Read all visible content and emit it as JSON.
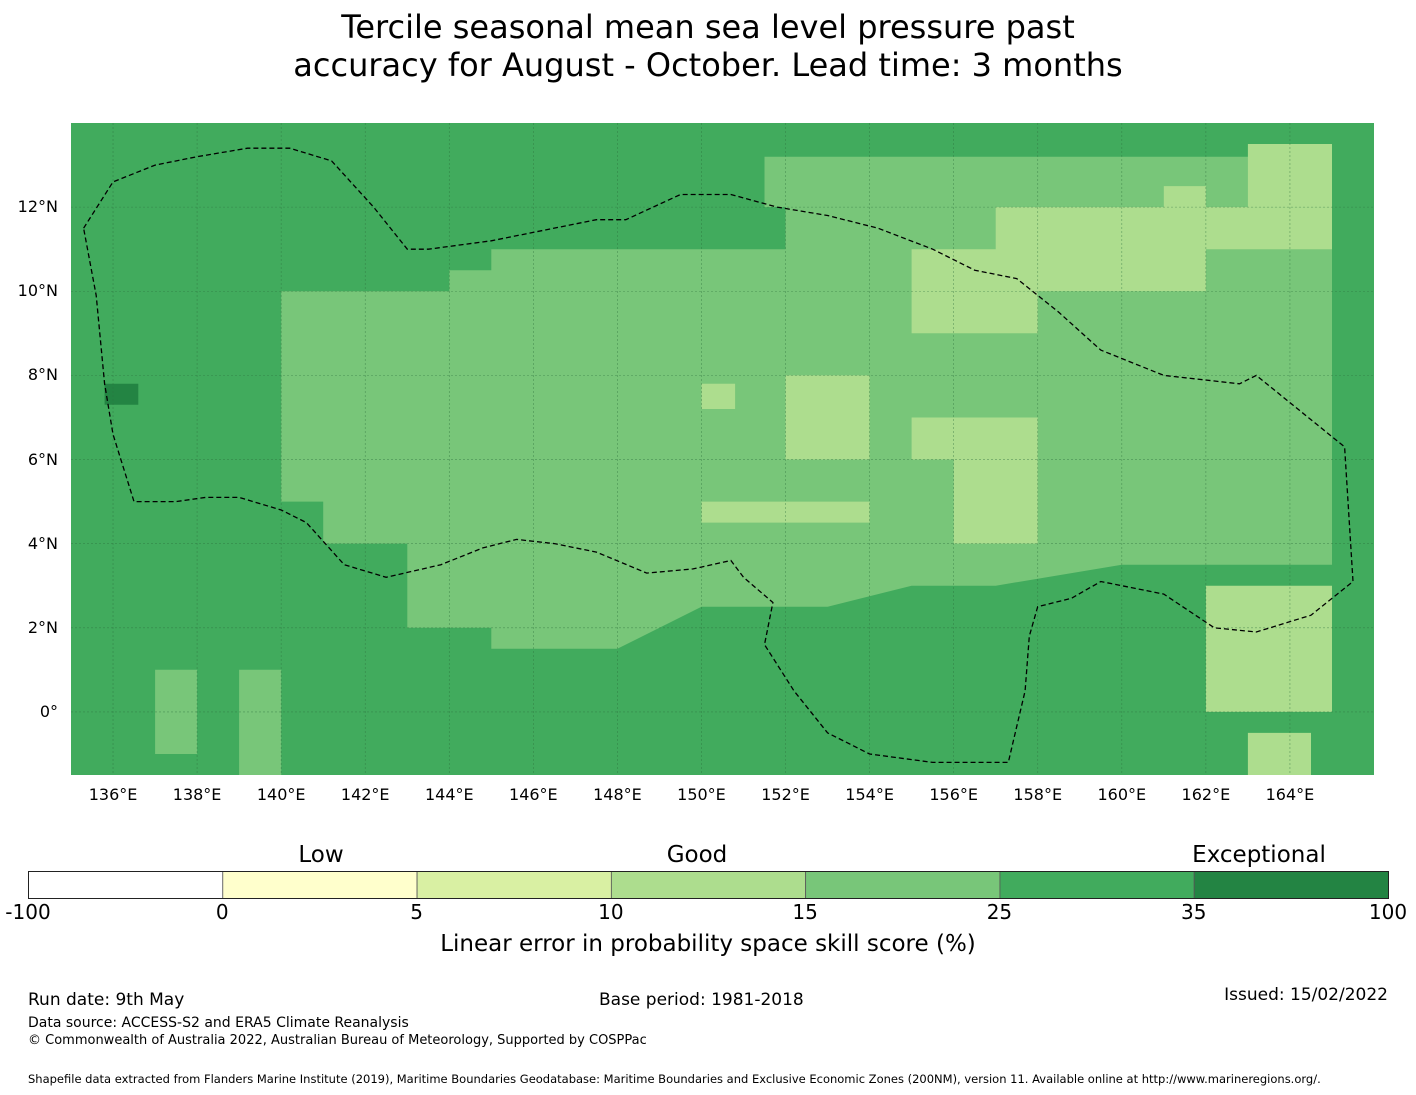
{
  "title": {
    "line1": "Tercile seasonal mean sea level pressure past",
    "line2": "accuracy for August - October. Lead time: 3 months"
  },
  "map": {
    "lon_min": 135,
    "lon_max": 166,
    "lat_min": -1.5,
    "lat_max": 14,
    "x_ticks": [
      "136°E",
      "138°E",
      "140°E",
      "142°E",
      "144°E",
      "146°E",
      "148°E",
      "150°E",
      "152°E",
      "154°E",
      "156°E",
      "158°E",
      "160°E",
      "162°E",
      "164°E"
    ],
    "y_ticks": [
      "12°N",
      "10°N",
      "8°N",
      "6°N",
      "4°N",
      "2°N",
      "0°"
    ],
    "x_tick_values": [
      136,
      138,
      140,
      142,
      144,
      146,
      148,
      150,
      152,
      154,
      156,
      158,
      160,
      162,
      164
    ],
    "y_tick_values": [
      12,
      10,
      8,
      6,
      4,
      2,
      0
    ],
    "background_class": 5,
    "regions": [
      {
        "class": 4,
        "polys": [
          [
            [
              140,
              10
            ],
            [
              144,
              10
            ],
            [
              144,
              10.5
            ],
            [
              145,
              10.5
            ],
            [
              145,
              11
            ],
            [
              152,
              11
            ],
            [
              152,
              12
            ],
            [
              151.5,
              12
            ],
            [
              151.5,
              13.2
            ],
            [
              165,
              13.2
            ],
            [
              165,
              3.5
            ],
            [
              160,
              3.5
            ],
            [
              157,
              3
            ],
            [
              155,
              3
            ],
            [
              153,
              2.5
            ],
            [
              150,
              2.5
            ],
            [
              148,
              1.5
            ],
            [
              145,
              1.5
            ],
            [
              145,
              2
            ],
            [
              143,
              2
            ],
            [
              143,
              4
            ],
            [
              141,
              4
            ],
            [
              141,
              5
            ],
            [
              140,
              5
            ],
            [
              140,
              10
            ]
          ],
          [
            [
              137,
              1
            ],
            [
              138,
              1
            ],
            [
              138,
              -1
            ],
            [
              137,
              -1
            ],
            [
              137,
              1
            ]
          ],
          [
            [
              139,
              1
            ],
            [
              140,
              1
            ],
            [
              140,
              -1.5
            ],
            [
              139,
              -1.5
            ],
            [
              139,
              1
            ]
          ]
        ]
      },
      {
        "class": 3,
        "polys": [
          [
            [
              154,
              9
            ],
            [
              158,
              9
            ],
            [
              158,
              10
            ],
            [
              162,
              10
            ],
            [
              162,
              11
            ],
            [
              165,
              11
            ],
            [
              165,
              12
            ],
            [
              157,
              12
            ],
            [
              157,
              11
            ],
            [
              155,
              11
            ],
            [
              155,
              9
            ],
            [
              154,
              9
            ]
          ],
          [
            [
              152,
              8
            ],
            [
              154,
              8
            ],
            [
              154,
              6
            ],
            [
              156,
              6
            ],
            [
              156,
              4
            ],
            [
              158,
              4
            ],
            [
              158,
              7
            ],
            [
              155,
              7
            ],
            [
              155,
              6
            ],
            [
              152,
              6
            ],
            [
              152,
              8
            ]
          ],
          [
            [
              150,
              5
            ],
            [
              154,
              5
            ],
            [
              154,
              4.5
            ],
            [
              150,
              4.5
            ],
            [
              150,
              5
            ]
          ],
          [
            [
              162,
              0
            ],
            [
              165,
              0
            ],
            [
              165,
              3
            ],
            [
              162,
              3
            ],
            [
              162,
              0
            ]
          ],
          [
            [
              163,
              -1.5
            ],
            [
              164.5,
              -1.5
            ],
            [
              164.5,
              -0.5
            ],
            [
              163,
              -0.5
            ],
            [
              163,
              -1.5
            ]
          ],
          [
            [
              161,
              11.5
            ],
            [
              162,
              11.5
            ],
            [
              162,
              12.5
            ],
            [
              161,
              12.5
            ],
            [
              161,
              11.5
            ]
          ],
          [
            [
              163,
              12
            ],
            [
              165,
              12
            ],
            [
              165,
              13.5
            ],
            [
              163,
              13.5
            ],
            [
              163,
              12
            ]
          ]
        ]
      },
      {
        "class": 6,
        "polys": [
          [
            [
              135.8,
              7.3
            ],
            [
              136.6,
              7.3
            ],
            [
              136.6,
              7.8
            ],
            [
              135.8,
              7.8
            ],
            [
              135.8,
              7.3
            ]
          ]
        ]
      },
      {
        "class": 3,
        "polys": [
          [
            [
              150,
              7.2
            ],
            [
              150.8,
              7.2
            ],
            [
              150.8,
              7.8
            ],
            [
              150,
              7.8
            ],
            [
              150,
              7.2
            ]
          ]
        ]
      }
    ],
    "eez_outline_lonlat": [
      [
        135.3,
        11.5
      ],
      [
        136,
        12.6
      ],
      [
        137,
        13
      ],
      [
        138,
        13.2
      ],
      [
        139.2,
        13.4
      ],
      [
        140.2,
        13.4
      ],
      [
        141.2,
        13.1
      ],
      [
        142.2,
        12
      ],
      [
        143,
        11
      ],
      [
        143.5,
        11
      ],
      [
        145,
        11.2
      ],
      [
        147.5,
        11.7
      ],
      [
        148.2,
        11.7
      ],
      [
        149.5,
        12.3
      ],
      [
        150.7,
        12.3
      ],
      [
        151.8,
        12
      ],
      [
        153,
        11.8
      ],
      [
        154.2,
        11.5
      ],
      [
        155.5,
        11
      ],
      [
        156.5,
        10.5
      ],
      [
        157.5,
        10.3
      ],
      [
        158.5,
        9.5
      ],
      [
        159.5,
        8.6
      ],
      [
        161,
        8
      ],
      [
        162.8,
        7.8
      ],
      [
        163.2,
        8
      ],
      [
        165.3,
        6.3
      ],
      [
        165.5,
        3.1
      ],
      [
        164.5,
        2.3
      ],
      [
        163.2,
        1.9
      ],
      [
        162.2,
        2
      ],
      [
        161,
        2.8
      ],
      [
        160.5,
        2.9
      ],
      [
        159.5,
        3.1
      ],
      [
        158.8,
        2.7
      ],
      [
        158,
        2.5
      ],
      [
        157.8,
        1.8
      ],
      [
        157.7,
        0.5
      ],
      [
        157.3,
        -1.2
      ],
      [
        155.5,
        -1.2
      ],
      [
        154,
        -1
      ],
      [
        153,
        -0.5
      ],
      [
        152.2,
        0.5
      ],
      [
        151.5,
        1.6
      ],
      [
        151.7,
        2.6
      ],
      [
        151,
        3.2
      ],
      [
        150.7,
        3.6
      ],
      [
        149.8,
        3.4
      ],
      [
        148.7,
        3.3
      ],
      [
        147.5,
        3.8
      ],
      [
        146.5,
        4
      ],
      [
        145.6,
        4.1
      ],
      [
        144.8,
        3.9
      ],
      [
        143.8,
        3.5
      ],
      [
        142.5,
        3.2
      ],
      [
        141.5,
        3.5
      ],
      [
        140.6,
        4.5
      ],
      [
        140,
        4.8
      ],
      [
        139,
        5.1
      ],
      [
        138.2,
        5.1
      ],
      [
        137.5,
        5
      ],
      [
        136.5,
        5
      ],
      [
        136,
        6.6
      ],
      [
        135.8,
        7.8
      ],
      [
        135.6,
        9.9
      ],
      [
        135.3,
        11.5
      ]
    ]
  },
  "colorbar": {
    "colors": [
      "#ffffff",
      "#ffffcc",
      "#d9f0a3",
      "#addd8e",
      "#78c679",
      "#41ab5d",
      "#238443"
    ],
    "ticks": [
      "-100",
      "0",
      "5",
      "10",
      "15",
      "25",
      "35",
      "100"
    ],
    "categories": [
      "Low",
      "Good",
      "Exceptional"
    ],
    "label": "Linear error in probability space skill score (%)"
  },
  "footer": {
    "run_date": "Run date: 9th May",
    "base_period": "Base period: 1981-2018",
    "issued": "Issued: 15/02/2022",
    "data_source": "Data source: ACCESS-S2 and ERA5 Climate Reanalysis",
    "copyright": "© Commonwealth of Australia 2022, Australian Bureau of Meteorology, Supported by COSPPac",
    "shapefile": "Shapefile data extracted from Flanders Marine Institute (2019), Maritime Boundaries Geodatabase: Maritime Boundaries and Exclusive Economic Zones (200NM), version 11. Available online at http://www.marineregions.org/."
  }
}
